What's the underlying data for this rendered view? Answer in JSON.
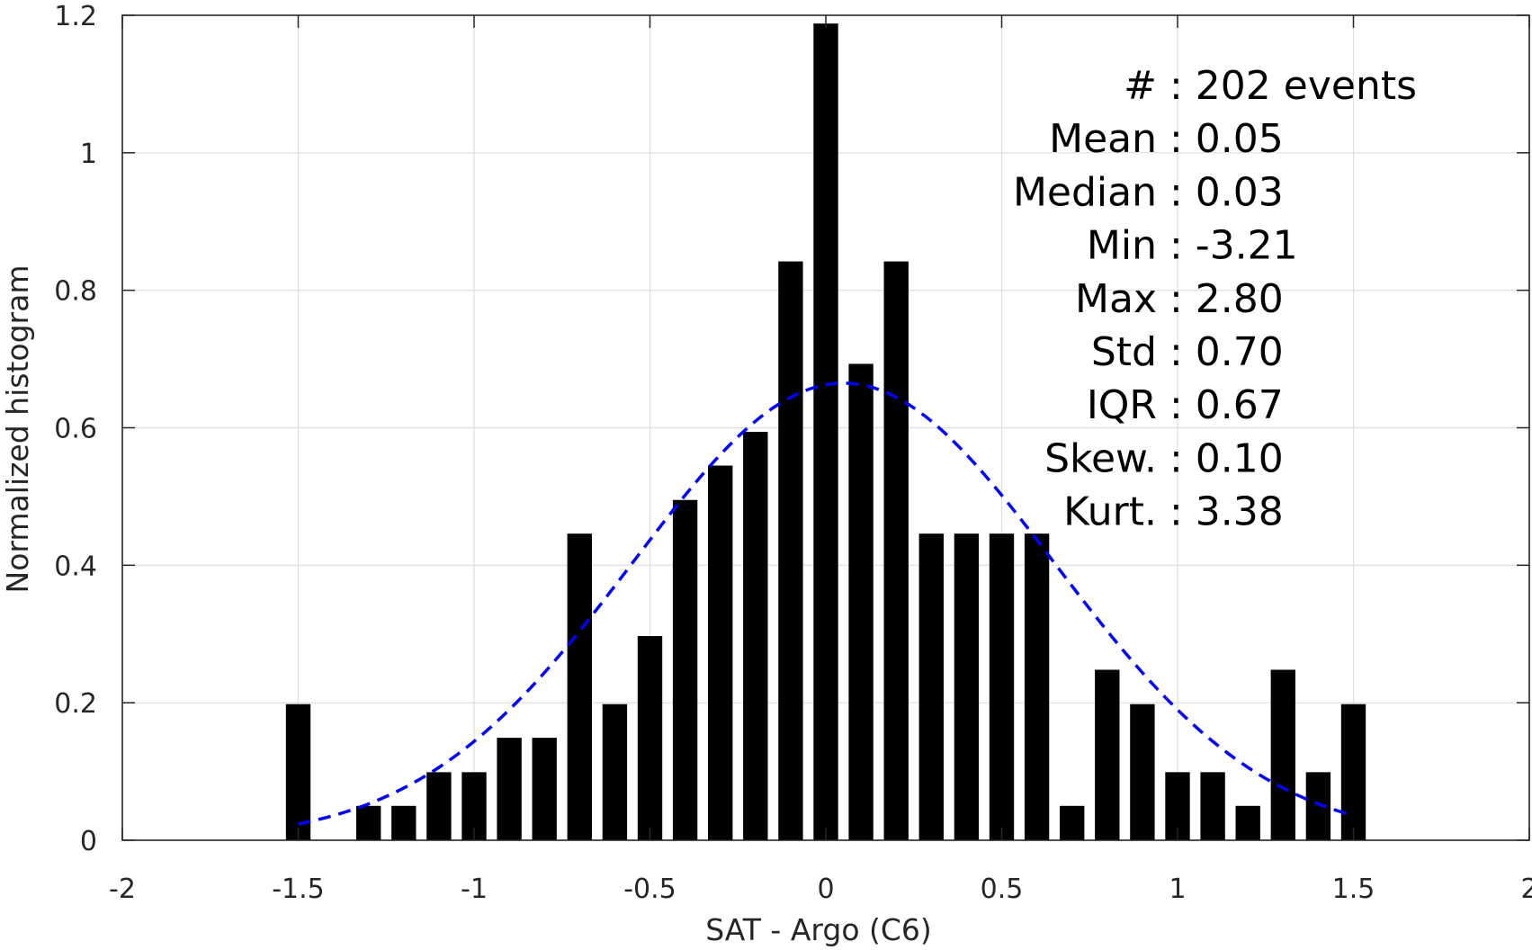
{
  "chart_data": {
    "type": "bar",
    "xlabel": "SAT - Argo (C6)",
    "ylabel": "Normalized histogram",
    "xlim": [
      -2,
      2
    ],
    "ylim": [
      0,
      1.2
    ],
    "grid": true,
    "x_ticks": [
      "-2",
      "-1.5",
      "-1",
      "-0.5",
      "0",
      "0.5",
      "1",
      "1.5",
      "2"
    ],
    "y_ticks": [
      "0",
      "0.2",
      "0.4",
      "0.6",
      "0.8",
      "1",
      "1.2"
    ],
    "bars": [
      {
        "x": -1.5,
        "value": 0.198
      },
      {
        "x": -1.3,
        "value": 0.05
      },
      {
        "x": -1.2,
        "value": 0.05
      },
      {
        "x": -1.1,
        "value": 0.099
      },
      {
        "x": -1.0,
        "value": 0.099
      },
      {
        "x": -0.9,
        "value": 0.149
      },
      {
        "x": -0.8,
        "value": 0.149
      },
      {
        "x": -0.7,
        "value": 0.446
      },
      {
        "x": -0.6,
        "value": 0.198
      },
      {
        "x": -0.5,
        "value": 0.297
      },
      {
        "x": -0.4,
        "value": 0.495
      },
      {
        "x": -0.3,
        "value": 0.545
      },
      {
        "x": -0.2,
        "value": 0.594
      },
      {
        "x": -0.1,
        "value": 0.842
      },
      {
        "x": 0.0,
        "value": 1.188
      },
      {
        "x": 0.1,
        "value": 0.693
      },
      {
        "x": 0.2,
        "value": 0.842
      },
      {
        "x": 0.3,
        "value": 0.446
      },
      {
        "x": 0.4,
        "value": 0.446
      },
      {
        "x": 0.5,
        "value": 0.446
      },
      {
        "x": 0.6,
        "value": 0.446
      },
      {
        "x": 0.7,
        "value": 0.05
      },
      {
        "x": 0.8,
        "value": 0.248
      },
      {
        "x": 0.9,
        "value": 0.198
      },
      {
        "x": 1.0,
        "value": 0.099
      },
      {
        "x": 1.1,
        "value": 0.099
      },
      {
        "x": 1.2,
        "value": 0.05
      },
      {
        "x": 1.3,
        "value": 0.248
      },
      {
        "x": 1.4,
        "value": 0.099
      },
      {
        "x": 1.5,
        "value": 0.198
      }
    ],
    "bar_width": 0.07,
    "bar_color": "#000000",
    "fit_curve": {
      "style": "dashed",
      "color": "#0000ff",
      "distribution": "normal",
      "mean": 0.05,
      "std": 0.6,
      "x_range": [
        -1.5,
        1.5
      ]
    },
    "annotations": [
      {
        "label": "#",
        "value": ": 202 events"
      },
      {
        "label": "Mean",
        "value": ": 0.05"
      },
      {
        "label": "Median",
        "value": ": 0.03"
      },
      {
        "label": "Min",
        "value": ": -3.21"
      },
      {
        "label": "Max",
        "value": ": 2.80"
      },
      {
        "label": "Std",
        "value": ": 0.70"
      },
      {
        "label": "IQR",
        "value": ": 0.67"
      },
      {
        "label": "Skew.",
        "value": ": 0.10"
      },
      {
        "label": "Kurt.",
        "value": ": 3.38"
      }
    ]
  }
}
